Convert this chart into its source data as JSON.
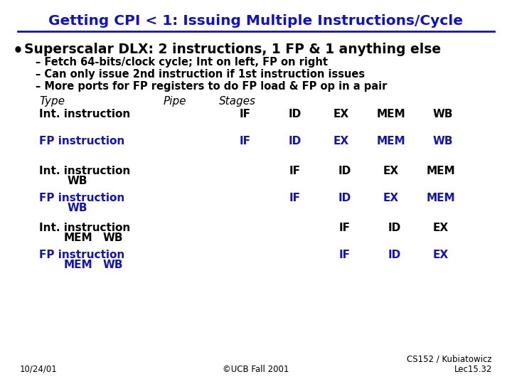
{
  "title": "Getting CPI < 1: Issuing Multiple Instructions/Cycle",
  "bg_color": "#ffffff",
  "title_color": "#1111cc",
  "bullet_text": "Superscalar DLX: 2 instructions, 1 FP & 1 anything else",
  "sub_bullets": [
    "– Fetch 64-bits/clock cycle; Int on left, FP on right",
    "– Can only issue 2nd instruction if 1st instruction issues",
    "– More ports for FP registers to do FP load & FP op in a pair"
  ],
  "footer_left": "10/24/01",
  "footer_center": "©UCB Fall 2001",
  "footer_right": "CS152 / Kubiatowicz\nLec15.32",
  "blue": "#1111cc",
  "black": "#000000"
}
